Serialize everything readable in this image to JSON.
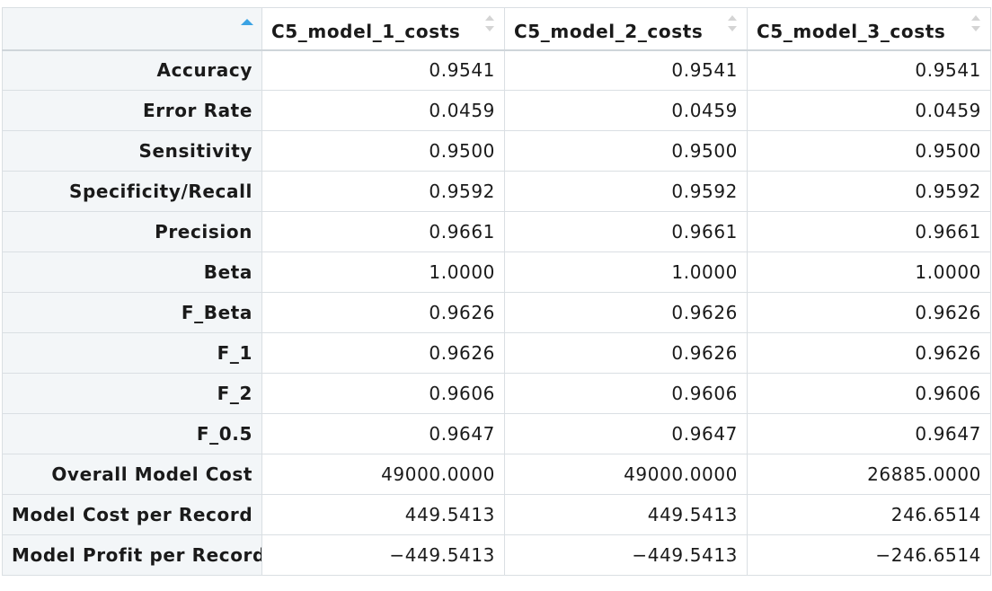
{
  "table": {
    "header": {
      "corner_label": "",
      "columns": [
        "C5_model_1_costs",
        "C5_model_2_costs",
        "C5_model_3_costs"
      ]
    },
    "rows": [
      {
        "label": "Accuracy",
        "values": [
          "0.9541",
          "0.9541",
          "0.9541"
        ]
      },
      {
        "label": "Error Rate",
        "values": [
          "0.0459",
          "0.0459",
          "0.0459"
        ]
      },
      {
        "label": "Sensitivity",
        "values": [
          "0.9500",
          "0.9500",
          "0.9500"
        ]
      },
      {
        "label": "Specificity/Recall",
        "values": [
          "0.9592",
          "0.9592",
          "0.9592"
        ]
      },
      {
        "label": "Precision",
        "values": [
          "0.9661",
          "0.9661",
          "0.9661"
        ]
      },
      {
        "label": "Beta",
        "values": [
          "1.0000",
          "1.0000",
          "1.0000"
        ]
      },
      {
        "label": "F_Beta",
        "values": [
          "0.9626",
          "0.9626",
          "0.9626"
        ]
      },
      {
        "label": "F_1",
        "values": [
          "0.9626",
          "0.9626",
          "0.9626"
        ]
      },
      {
        "label": "F_2",
        "values": [
          "0.9606",
          "0.9606",
          "0.9606"
        ]
      },
      {
        "label": "F_0.5",
        "values": [
          "0.9647",
          "0.9647",
          "0.9647"
        ]
      },
      {
        "label": "Overall Model Cost",
        "values": [
          "49000.0000",
          "49000.0000",
          "26885.0000"
        ]
      },
      {
        "label": "Model Cost per Record",
        "values": [
          "449.5413",
          "449.5413",
          "246.6514"
        ]
      },
      {
        "label": "Model Profit per Record",
        "values": [
          "−449.5413",
          "−449.5413",
          "−246.6514"
        ]
      }
    ]
  },
  "colors": {
    "sort_active": "#3ba3e4",
    "sort_inactive": "#d4d4d4",
    "row_header_bg": "#f3f6f8",
    "border": "#dadfe3"
  },
  "icons": {
    "corner": "sort-ascending-icon",
    "columns": "sort-both-icon"
  }
}
